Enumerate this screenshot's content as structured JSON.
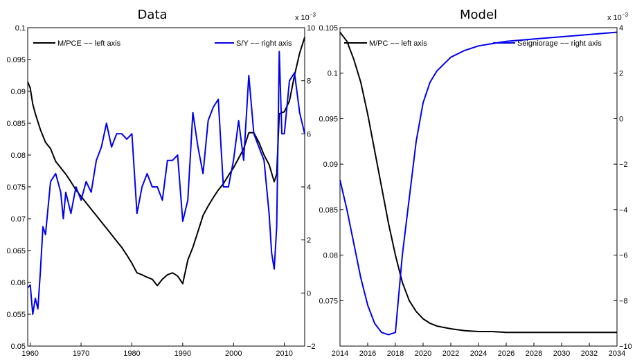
{
  "colors": {
    "black_series": "#000000",
    "blue_series": "#0000ee",
    "axes": "#000000"
  },
  "chart_data": [
    {
      "type": "line",
      "title": "Data",
      "xlabel": "",
      "ylabel": "",
      "xlim": [
        1959.5,
        2014
      ],
      "ylim_left": [
        0.05,
        0.1
      ],
      "ylim_right": [
        -2,
        10
      ],
      "right_exponent_label": "x 10",
      "right_exponent_power": "−3",
      "x_ticks": [
        1960,
        1970,
        1980,
        1990,
        2000,
        2010
      ],
      "x_tick_labels": [
        "1960",
        "1970",
        "1980",
        "1990",
        "2000",
        "2010"
      ],
      "left_ticks": [
        0.05,
        0.055,
        0.06,
        0.065,
        0.07,
        0.075,
        0.08,
        0.085,
        0.09,
        0.095,
        0.1
      ],
      "left_tick_labels": [
        "0.05",
        "0.055",
        "0.06",
        "0.065",
        "0.07",
        "0.075",
        "0.08",
        "0.085",
        "0.09",
        "0.095",
        "0.1"
      ],
      "right_ticks": [
        -2,
        0,
        2,
        4,
        6,
        8,
        10
      ],
      "right_tick_labels": [
        "−2",
        "0",
        "2",
        "4",
        "6",
        "8",
        "10"
      ],
      "grid": false,
      "legend_placement": "top",
      "series": [
        {
          "name": "M/PCE −− left axis",
          "axis": "left",
          "color": "#000000",
          "x": [
            1959.5,
            1960,
            1960.5,
            1961,
            1962,
            1963,
            1964,
            1965,
            1966,
            1967,
            1968,
            1969,
            1970,
            1971,
            1972,
            1973,
            1974,
            1975,
            1976,
            1977,
            1978,
            1979,
            1980,
            1981,
            1982,
            1983,
            1984,
            1985,
            1986,
            1987,
            1988,
            1989,
            1990,
            1991,
            1992,
            1993,
            1994,
            1995,
            1996,
            1997,
            1998,
            1999,
            2000,
            2001,
            2002,
            2003,
            2004,
            2005,
            2006,
            2007,
            2008,
            2008.5,
            2009,
            2010,
            2011,
            2012,
            2013,
            2014
          ],
          "y": [
            0.0915,
            0.0905,
            0.088,
            0.0865,
            0.084,
            0.082,
            0.081,
            0.079,
            0.078,
            0.077,
            0.0758,
            0.0745,
            0.0735,
            0.0725,
            0.0715,
            0.0705,
            0.0695,
            0.0685,
            0.0675,
            0.0665,
            0.0655,
            0.0643,
            0.063,
            0.0615,
            0.0612,
            0.0608,
            0.0605,
            0.0595,
            0.0605,
            0.0612,
            0.0615,
            0.061,
            0.0598,
            0.0635,
            0.0655,
            0.068,
            0.0705,
            0.072,
            0.0733,
            0.0745,
            0.0755,
            0.0768,
            0.078,
            0.0795,
            0.081,
            0.0835,
            0.0835,
            0.082,
            0.08,
            0.0785,
            0.0758,
            0.077,
            0.0865,
            0.0868,
            0.0885,
            0.0925,
            0.096,
            0.0985
          ]
        },
        {
          "name": "S/Y −− right axis",
          "axis": "right",
          "color": "#0000ee",
          "x": [
            1959.5,
            1960,
            1960.5,
            1961,
            1961.5,
            1962,
            1962.5,
            1963,
            1964,
            1965,
            1966,
            1966.5,
            1967,
            1968,
            1969,
            1970,
            1971,
            1972,
            1973,
            1974,
            1975,
            1976,
            1977,
            1978,
            1979,
            1980,
            1981,
            1982,
            1983,
            1984,
            1985,
            1986,
            1987,
            1988,
            1989,
            1990,
            1991,
            1992,
            1993,
            1994,
            1995,
            1996,
            1997,
            1998,
            1999,
            2000,
            2001,
            2002,
            2003,
            2004,
            2005,
            2006,
            2007,
            2007.5,
            2008,
            2008.5,
            2009,
            2009.5,
            2010,
            2011,
            2012,
            2013,
            2014
          ],
          "y": [
            0.2,
            0.3,
            -0.8,
            -0.2,
            -0.6,
            0.8,
            2.5,
            2.2,
            4.2,
            4.5,
            3.8,
            2.8,
            3.8,
            3.0,
            4.0,
            3.5,
            4.2,
            3.8,
            5.0,
            5.5,
            6.4,
            5.5,
            6.0,
            6.0,
            5.8,
            6.0,
            3.0,
            4.0,
            4.5,
            4.0,
            4.0,
            3.5,
            5.0,
            5.0,
            5.2,
            2.7,
            3.5,
            6.8,
            5.5,
            4.5,
            6.5,
            7.0,
            7.3,
            4.0,
            4.0,
            5.0,
            6.5,
            5.0,
            8.2,
            6.0,
            5.5,
            5.0,
            3.0,
            1.5,
            0.9,
            2.5,
            9.1,
            6.0,
            6.0,
            8.0,
            8.3,
            6.8,
            6.0
          ]
        }
      ]
    },
    {
      "type": "line",
      "title": "Model",
      "xlabel": "",
      "ylabel": "",
      "xlim": [
        2014,
        2034
      ],
      "ylim_left": [
        0.07,
        0.105
      ],
      "ylim_right": [
        -10,
        4
      ],
      "right_exponent_label": "x 10",
      "right_exponent_power": "−3",
      "x_ticks": [
        2014,
        2016,
        2018,
        2020,
        2022,
        2024,
        2026,
        2028,
        2030,
        2032,
        2034
      ],
      "x_tick_labels": [
        "2014",
        "2016",
        "2018",
        "2020",
        "2022",
        "2024",
        "2026",
        "2028",
        "2030",
        "2032",
        "2034"
      ],
      "left_ticks": [
        0.075,
        0.08,
        0.085,
        0.09,
        0.095,
        0.1,
        0.105
      ],
      "left_tick_labels": [
        "0.075",
        "0.08",
        "0.085",
        "0.09",
        "0.095",
        "0.1",
        "0.105"
      ],
      "right_ticks": [
        -10,
        -8,
        -6,
        -4,
        -2,
        0,
        2,
        4
      ],
      "right_tick_labels": [
        "−10",
        "−8",
        "−6",
        "−4",
        "−2",
        "0",
        "2",
        "4"
      ],
      "grid": false,
      "legend_placement": "top",
      "series": [
        {
          "name": "M/PC −− left axis",
          "axis": "left",
          "color": "#000000",
          "x": [
            2014,
            2014.5,
            2015,
            2015.5,
            2016,
            2016.5,
            2017,
            2017.5,
            2018,
            2018.5,
            2019,
            2019.5,
            2020,
            2020.5,
            2021,
            2022,
            2023,
            2024,
            2025,
            2026,
            2028,
            2030,
            2032,
            2034
          ],
          "y": [
            0.1045,
            0.1035,
            0.1015,
            0.099,
            0.0955,
            0.0915,
            0.0875,
            0.0835,
            0.08,
            0.077,
            0.075,
            0.0738,
            0.073,
            0.0725,
            0.0722,
            0.0719,
            0.0717,
            0.0716,
            0.0716,
            0.0715,
            0.0715,
            0.0715,
            0.0715,
            0.0715
          ]
        },
        {
          "name": "Seigniorage −− right axis",
          "axis": "right",
          "color": "#0000ee",
          "x": [
            2014,
            2014.5,
            2015,
            2015.5,
            2016,
            2016.5,
            2017,
            2017.5,
            2018,
            2018.5,
            2019,
            2019.5,
            2020,
            2020.5,
            2021,
            2022,
            2023,
            2024,
            2025,
            2026,
            2028,
            2030,
            2032,
            2034
          ],
          "y": [
            -2.7,
            -4.0,
            -5.5,
            -7.0,
            -8.2,
            -9.0,
            -9.4,
            -9.5,
            -9.4,
            -6.0,
            -3.5,
            -1.0,
            0.7,
            1.6,
            2.1,
            2.7,
            3.0,
            3.2,
            3.3,
            3.4,
            3.5,
            3.6,
            3.7,
            3.8
          ]
        }
      ]
    }
  ]
}
